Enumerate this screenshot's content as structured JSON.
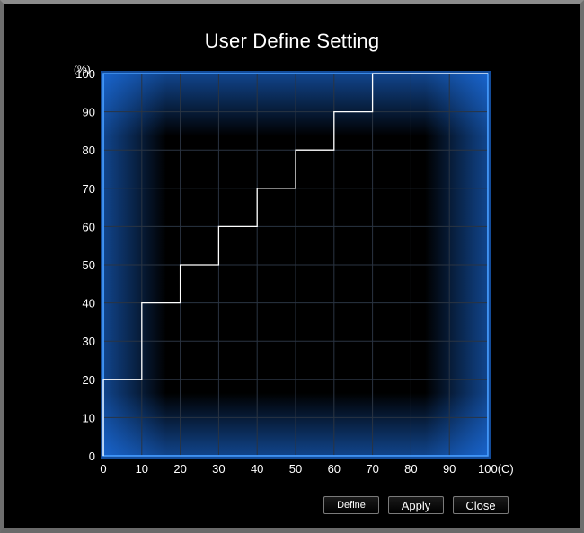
{
  "window": {
    "title": "User Define Setting"
  },
  "buttons": {
    "define": "Define",
    "apply": "Apply",
    "close": "Close"
  },
  "colors": {
    "background": "#000000",
    "glow": "#1f7dff",
    "curve": "#ffffff",
    "grid": "#2a3442"
  },
  "chart_data": {
    "type": "line",
    "step": true,
    "x": [
      0,
      10,
      20,
      30,
      40,
      50,
      60,
      70,
      100
    ],
    "y": [
      20,
      40,
      50,
      60,
      70,
      80,
      90,
      100,
      100
    ],
    "xlim": [
      0,
      100
    ],
    "ylim": [
      0,
      100
    ],
    "x_ticks": [
      "0",
      "10",
      "20",
      "30",
      "40",
      "50",
      "60",
      "70",
      "80",
      "90",
      "100(C)"
    ],
    "y_ticks": [
      "0",
      "10",
      "20",
      "30",
      "40",
      "50",
      "60",
      "70",
      "80",
      "90",
      "100"
    ],
    "y_unit_label": "(%)",
    "grid": true
  }
}
